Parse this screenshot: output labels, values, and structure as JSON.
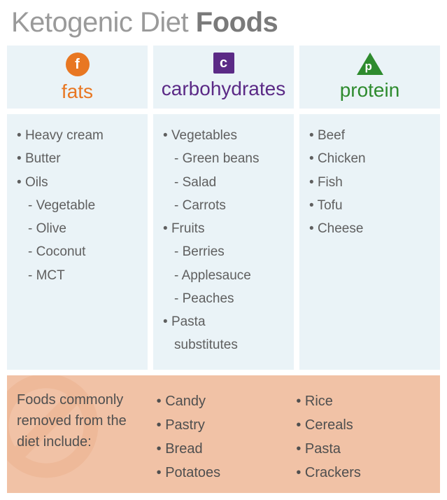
{
  "title_prefix": "Ketogenic Diet ",
  "title_bold": "Foods",
  "columns": [
    {
      "key": "fats",
      "label": "fats",
      "icon_letter": "f",
      "icon_shape": "circle",
      "color": "#e87722",
      "items": [
        {
          "text": "Heavy cream",
          "level": 0
        },
        {
          "text": "Butter",
          "level": 0
        },
        {
          "text": "Oils",
          "level": 0
        },
        {
          "text": "Vegetable",
          "level": 1,
          "prefix": "-"
        },
        {
          "text": "Olive",
          "level": 1
        },
        {
          "text": "Coconut",
          "level": 1
        },
        {
          "text": "MCT",
          "level": 1
        }
      ]
    },
    {
      "key": "carbs",
      "label": "carbohydrates",
      "icon_letter": "c",
      "icon_shape": "square",
      "color": "#5b2a86",
      "items": [
        {
          "text": "Vegetables",
          "level": 0
        },
        {
          "text": "Green beans",
          "level": 1
        },
        {
          "text": "Salad",
          "level": 1
        },
        {
          "text": "Carrots",
          "level": 1
        },
        {
          "text": "Fruits",
          "level": 0
        },
        {
          "text": "Berries",
          "level": 1
        },
        {
          "text": "Applesauce",
          "level": 1
        },
        {
          "text": "Peaches",
          "level": 1
        },
        {
          "text": "Pasta",
          "level": 0
        },
        {
          "text": "substitutes",
          "level": 1,
          "continuation": true
        }
      ]
    },
    {
      "key": "protein",
      "label": "protein",
      "icon_letter": "p",
      "icon_shape": "triangle",
      "color": "#2e8b2e",
      "items": [
        {
          "text": "Beef",
          "level": 0
        },
        {
          "text": "Chicken",
          "level": 0
        },
        {
          "text": "Fish",
          "level": 0
        },
        {
          "text": "Tofu",
          "level": 0
        },
        {
          "text": "Cheese",
          "level": 0
        }
      ]
    }
  ],
  "removed": {
    "background_color": "#f1c2a6",
    "watermark_color": "#e9a77f",
    "intro": "Foods commonly removed from the diet include:",
    "col1": [
      "Candy",
      "Pastry",
      "Bread",
      "Potatoes"
    ],
    "col2": [
      "Rice",
      "Cereals",
      "Pasta",
      "Crackers"
    ]
  },
  "style": {
    "panel_bg": "#eaf3f7",
    "text_color": "#5f5f5f",
    "title_light": "#9a9a9a",
    "title_bold_color": "#7a7a7a"
  }
}
